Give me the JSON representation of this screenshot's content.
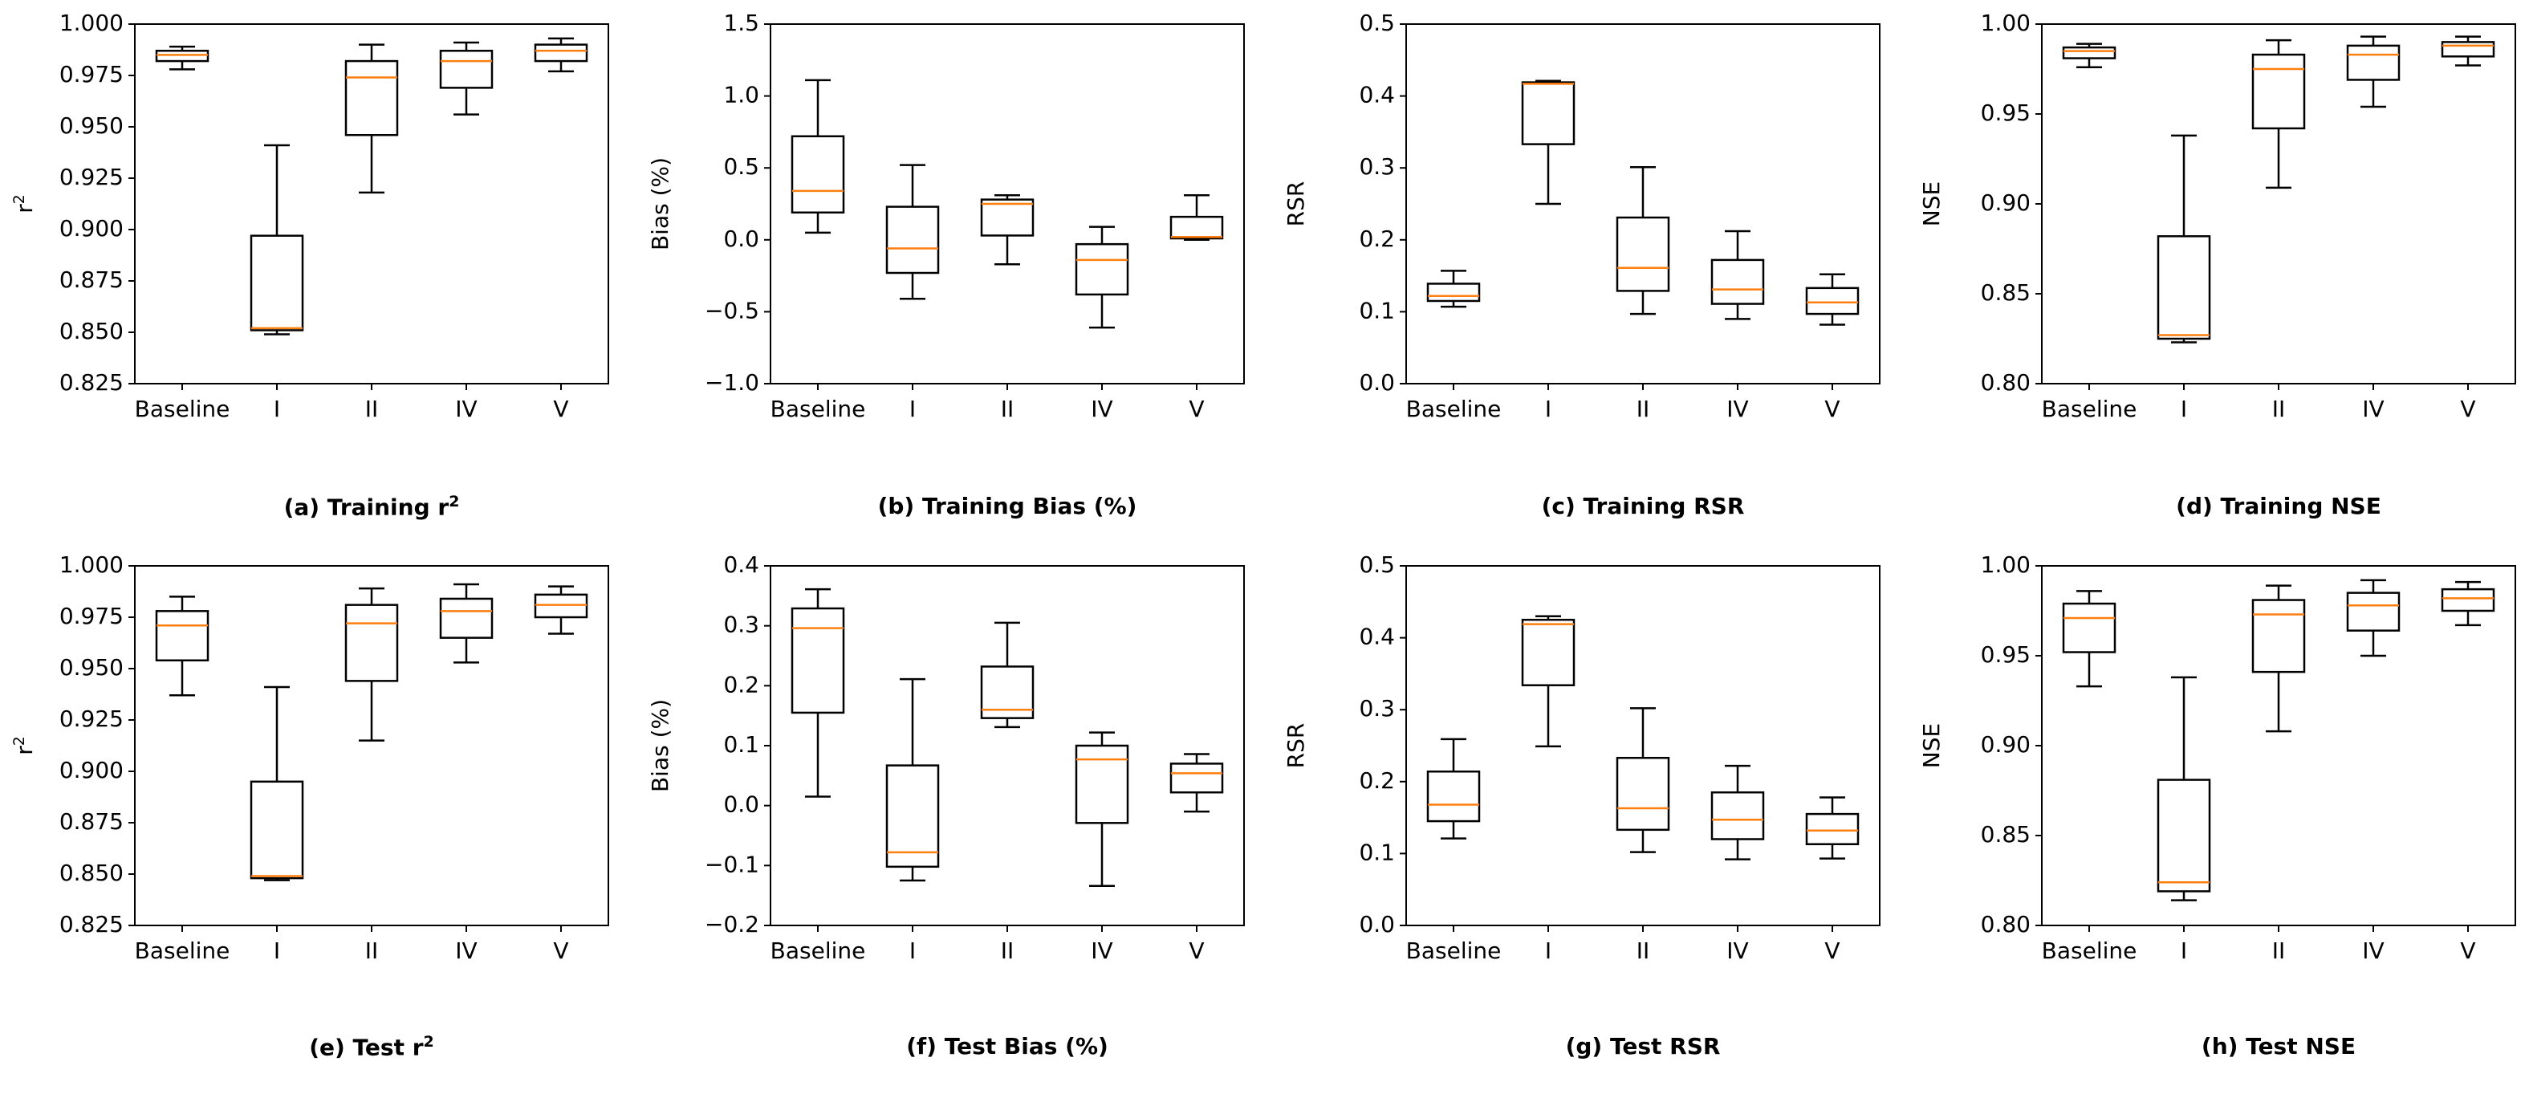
{
  "chart_data": [
    {
      "type": "box",
      "panel": "(a)",
      "caption_prefix": "(a) Training r",
      "caption_sup": "2",
      "caption_suffix": "",
      "ylabel": "r",
      "ylabel_sup": "2",
      "categories": [
        "Baseline",
        "I",
        "II",
        "IV",
        "V"
      ],
      "ylim": [
        0.825,
        1.0
      ],
      "yticks": [
        "0.825",
        "0.850",
        "0.875",
        "0.900",
        "0.925",
        "0.950",
        "0.975",
        "1.000"
      ],
      "boxes": [
        {
          "category": "Baseline",
          "whisker_low": 0.978,
          "q1": 0.982,
          "median": 0.985,
          "q3": 0.987,
          "whisker_high": 0.989
        },
        {
          "category": "I",
          "whisker_low": 0.849,
          "q1": 0.851,
          "median": 0.852,
          "q3": 0.897,
          "whisker_high": 0.941
        },
        {
          "category": "II",
          "whisker_low": 0.918,
          "q1": 0.946,
          "median": 0.974,
          "q3": 0.982,
          "whisker_high": 0.99
        },
        {
          "category": "IV",
          "whisker_low": 0.956,
          "q1": 0.969,
          "median": 0.982,
          "q3": 0.987,
          "whisker_high": 0.991
        },
        {
          "category": "V",
          "whisker_low": 0.977,
          "q1": 0.982,
          "median": 0.987,
          "q3": 0.99,
          "whisker_high": 0.993
        }
      ]
    },
    {
      "type": "box",
      "panel": "(b)",
      "caption_prefix": "(b) Training Bias (%)",
      "caption_sup": "",
      "caption_suffix": "",
      "ylabel": "Bias (%)",
      "ylabel_sup": "",
      "categories": [
        "Baseline",
        "I",
        "II",
        "IV",
        "V"
      ],
      "ylim": [
        -1.0,
        1.5
      ],
      "yticks": [
        "−1.0",
        "−0.5",
        "0.0",
        "0.5",
        "1.0",
        "1.5"
      ],
      "boxes": [
        {
          "category": "Baseline",
          "whisker_low": 0.05,
          "q1": 0.19,
          "median": 0.34,
          "q3": 0.72,
          "whisker_high": 1.11
        },
        {
          "category": "I",
          "whisker_low": -0.41,
          "q1": -0.23,
          "median": -0.06,
          "q3": 0.23,
          "whisker_high": 0.52
        },
        {
          "category": "II",
          "whisker_low": -0.17,
          "q1": 0.03,
          "median": 0.25,
          "q3": 0.28,
          "whisker_high": 0.31
        },
        {
          "category": "IV",
          "whisker_low": -0.61,
          "q1": -0.38,
          "median": -0.14,
          "q3": -0.03,
          "whisker_high": 0.09
        },
        {
          "category": "V",
          "whisker_low": 0.0,
          "q1": 0.01,
          "median": 0.02,
          "q3": 0.16,
          "whisker_high": 0.31
        }
      ]
    },
    {
      "type": "box",
      "panel": "(c)",
      "caption_prefix": "(c) Training RSR",
      "caption_sup": "",
      "caption_suffix": "",
      "ylabel": "RSR",
      "ylabel_sup": "",
      "categories": [
        "Baseline",
        "I",
        "II",
        "IV",
        "V"
      ],
      "ylim": [
        0.0,
        0.5
      ],
      "yticks": [
        "0.0",
        "0.1",
        "0.2",
        "0.3",
        "0.4",
        "0.5"
      ],
      "boxes": [
        {
          "category": "Baseline",
          "whisker_low": 0.107,
          "q1": 0.115,
          "median": 0.122,
          "q3": 0.139,
          "whisker_high": 0.157
        },
        {
          "category": "I",
          "whisker_low": 0.25,
          "q1": 0.333,
          "median": 0.417,
          "q3": 0.419,
          "whisker_high": 0.421
        },
        {
          "category": "II",
          "whisker_low": 0.097,
          "q1": 0.129,
          "median": 0.161,
          "q3": 0.231,
          "whisker_high": 0.301
        },
        {
          "category": "IV",
          "whisker_low": 0.09,
          "q1": 0.111,
          "median": 0.131,
          "q3": 0.172,
          "whisker_high": 0.212
        },
        {
          "category": "V",
          "whisker_low": 0.082,
          "q1": 0.097,
          "median": 0.113,
          "q3": 0.133,
          "whisker_high": 0.152
        }
      ]
    },
    {
      "type": "box",
      "panel": "(d)",
      "caption_prefix": "(d) Training NSE",
      "caption_sup": "",
      "caption_suffix": "",
      "ylabel": "NSE",
      "ylabel_sup": "",
      "categories": [
        "Baseline",
        "I",
        "II",
        "IV",
        "V"
      ],
      "ylim": [
        0.8,
        1.0
      ],
      "yticks": [
        "0.80",
        "0.85",
        "0.90",
        "0.95",
        "1.00"
      ],
      "boxes": [
        {
          "category": "Baseline",
          "whisker_low": 0.976,
          "q1": 0.981,
          "median": 0.985,
          "q3": 0.987,
          "whisker_high": 0.989
        },
        {
          "category": "I",
          "whisker_low": 0.823,
          "q1": 0.825,
          "median": 0.827,
          "q3": 0.882,
          "whisker_high": 0.938
        },
        {
          "category": "II",
          "whisker_low": 0.909,
          "q1": 0.942,
          "median": 0.975,
          "q3": 0.983,
          "whisker_high": 0.991
        },
        {
          "category": "IV",
          "whisker_low": 0.954,
          "q1": 0.969,
          "median": 0.983,
          "q3": 0.988,
          "whisker_high": 0.993
        },
        {
          "category": "V",
          "whisker_low": 0.977,
          "q1": 0.982,
          "median": 0.988,
          "q3": 0.99,
          "whisker_high": 0.993
        }
      ]
    },
    {
      "type": "box",
      "panel": "(e)",
      "caption_prefix": "(e) Test r",
      "caption_sup": "2",
      "caption_suffix": "",
      "ylabel": "r",
      "ylabel_sup": "2",
      "categories": [
        "Baseline",
        "I",
        "II",
        "IV",
        "V"
      ],
      "ylim": [
        0.825,
        1.0
      ],
      "yticks": [
        "0.825",
        "0.850",
        "0.875",
        "0.900",
        "0.925",
        "0.950",
        "0.975",
        "1.000"
      ],
      "boxes": [
        {
          "category": "Baseline",
          "whisker_low": 0.937,
          "q1": 0.954,
          "median": 0.971,
          "q3": 0.978,
          "whisker_high": 0.985
        },
        {
          "category": "I",
          "whisker_low": 0.847,
          "q1": 0.848,
          "median": 0.849,
          "q3": 0.895,
          "whisker_high": 0.941
        },
        {
          "category": "II",
          "whisker_low": 0.915,
          "q1": 0.944,
          "median": 0.972,
          "q3": 0.981,
          "whisker_high": 0.989
        },
        {
          "category": "IV",
          "whisker_low": 0.953,
          "q1": 0.965,
          "median": 0.978,
          "q3": 0.984,
          "whisker_high": 0.991
        },
        {
          "category": "V",
          "whisker_low": 0.967,
          "q1": 0.975,
          "median": 0.981,
          "q3": 0.986,
          "whisker_high": 0.99
        }
      ]
    },
    {
      "type": "box",
      "panel": "(f)",
      "caption_prefix": "(f) Test Bias (%)",
      "caption_sup": "",
      "caption_suffix": "",
      "ylabel": "Bias (%)",
      "ylabel_sup": "",
      "categories": [
        "Baseline",
        "I",
        "II",
        "IV",
        "V"
      ],
      "ylim": [
        -0.2,
        0.4
      ],
      "yticks": [
        "−0.2",
        "−0.1",
        "0.0",
        "0.1",
        "0.2",
        "0.3",
        "0.4"
      ],
      "boxes": [
        {
          "category": "Baseline",
          "whisker_low": 0.015,
          "q1": 0.155,
          "median": 0.296,
          "q3": 0.329,
          "whisker_high": 0.361
        },
        {
          "category": "I",
          "whisker_low": -0.125,
          "q1": -0.102,
          "median": -0.078,
          "q3": 0.067,
          "whisker_high": 0.211
        },
        {
          "category": "II",
          "whisker_low": 0.131,
          "q1": 0.146,
          "median": 0.16,
          "q3": 0.232,
          "whisker_high": 0.305
        },
        {
          "category": "IV",
          "whisker_low": -0.134,
          "q1": -0.029,
          "median": 0.077,
          "q3": 0.1,
          "whisker_high": 0.122
        },
        {
          "category": "V",
          "whisker_low": -0.01,
          "q1": 0.022,
          "median": 0.054,
          "q3": 0.07,
          "whisker_high": 0.086
        }
      ]
    },
    {
      "type": "box",
      "panel": "(g)",
      "caption_prefix": "(g) Test RSR",
      "caption_sup": "",
      "caption_suffix": "",
      "ylabel": "RSR",
      "ylabel_sup": "",
      "categories": [
        "Baseline",
        "I",
        "II",
        "IV",
        "V"
      ],
      "ylim": [
        0.0,
        0.5
      ],
      "yticks": [
        "0.0",
        "0.1",
        "0.2",
        "0.3",
        "0.4",
        "0.5"
      ],
      "boxes": [
        {
          "category": "Baseline",
          "whisker_low": 0.121,
          "q1": 0.145,
          "median": 0.168,
          "q3": 0.214,
          "whisker_high": 0.259
        },
        {
          "category": "I",
          "whisker_low": 0.249,
          "q1": 0.334,
          "median": 0.419,
          "q3": 0.425,
          "whisker_high": 0.43
        },
        {
          "category": "II",
          "whisker_low": 0.102,
          "q1": 0.133,
          "median": 0.163,
          "q3": 0.233,
          "whisker_high": 0.302
        },
        {
          "category": "IV",
          "whisker_low": 0.092,
          "q1": 0.12,
          "median": 0.147,
          "q3": 0.185,
          "whisker_high": 0.222
        },
        {
          "category": "V",
          "whisker_low": 0.093,
          "q1": 0.113,
          "median": 0.132,
          "q3": 0.155,
          "whisker_high": 0.178
        }
      ]
    },
    {
      "type": "box",
      "panel": "(h)",
      "caption_prefix": "(h) Test NSE",
      "caption_sup": "",
      "caption_suffix": "",
      "ylabel": "NSE",
      "ylabel_sup": "",
      "categories": [
        "Baseline",
        "I",
        "II",
        "IV",
        "V"
      ],
      "ylim": [
        0.8,
        1.0
      ],
      "yticks": [
        "0.80",
        "0.85",
        "0.90",
        "0.95",
        "1.00"
      ],
      "boxes": [
        {
          "category": "Baseline",
          "whisker_low": 0.933,
          "q1": 0.952,
          "median": 0.971,
          "q3": 0.979,
          "whisker_high": 0.986
        },
        {
          "category": "I",
          "whisker_low": 0.814,
          "q1": 0.819,
          "median": 0.824,
          "q3": 0.881,
          "whisker_high": 0.938
        },
        {
          "category": "II",
          "whisker_low": 0.908,
          "q1": 0.941,
          "median": 0.973,
          "q3": 0.981,
          "whisker_high": 0.989
        },
        {
          "category": "IV",
          "whisker_low": 0.95,
          "q1": 0.964,
          "median": 0.978,
          "q3": 0.985,
          "whisker_high": 0.992
        },
        {
          "category": "V",
          "whisker_low": 0.967,
          "q1": 0.975,
          "median": 0.982,
          "q3": 0.987,
          "whisker_high": 0.991
        }
      ]
    }
  ],
  "colors": {
    "box": "#000000",
    "median": "#ff7f0e",
    "background": "#ffffff"
  }
}
